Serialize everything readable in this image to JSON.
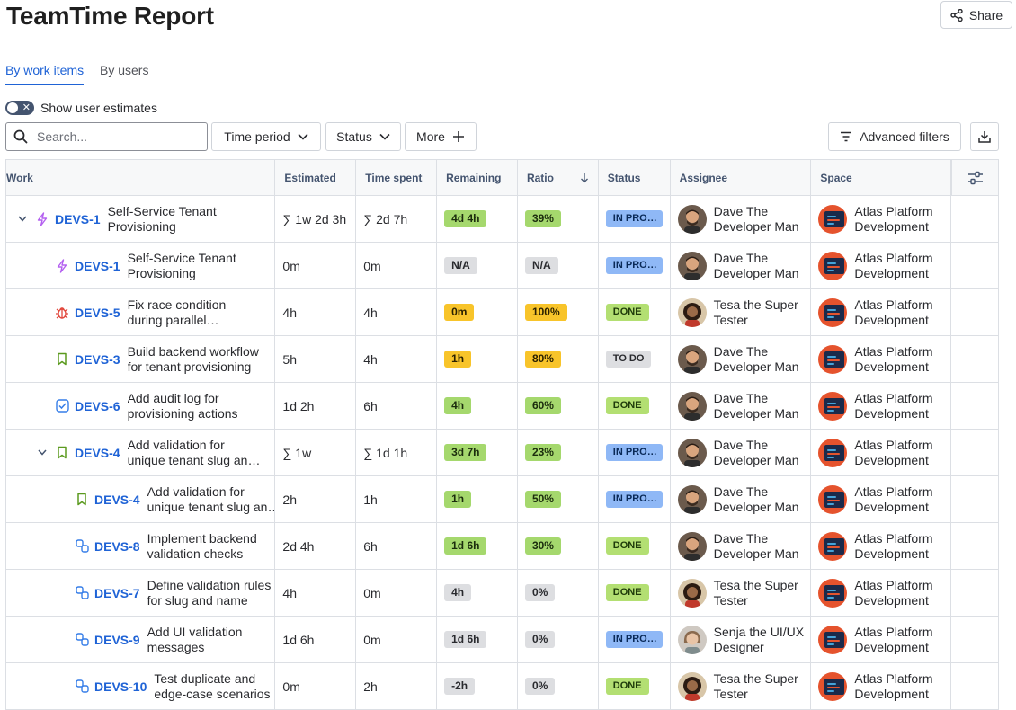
{
  "page": {
    "title": "TeamTime Report",
    "share_label": "Share"
  },
  "tabs": [
    {
      "label": "By work items",
      "active": true
    },
    {
      "label": "By users",
      "active": false
    }
  ],
  "toggle": {
    "label": "Show user estimates",
    "on": false
  },
  "toolbar": {
    "search_placeholder": "Search...",
    "time_period": "Time period",
    "status": "Status",
    "more": "More",
    "advanced_filters": "Advanced filters"
  },
  "table": {
    "columns": [
      "Work",
      "Estimated",
      "Time spent",
      "Remaining",
      "Ratio",
      "Status",
      "Assignee",
      "Space"
    ],
    "rows": [
      {
        "level": 0,
        "expand": true,
        "type": "epic-icon",
        "key": "DEVS-1",
        "summary": "Self-Service Tenant Provisioning",
        "estimated": "∑ 1w 2d 3h",
        "spent": "∑ 2d 7h",
        "remaining": "4d 4h",
        "remaining_color": "green",
        "ratio": "39%",
        "ratio_color": "green",
        "status": "IN PROGRESS",
        "status_kind": "inprog",
        "assignee": "Dave The Developer Man",
        "avatar": "dave",
        "space": "Atlas Platform Development"
      },
      {
        "level": 1,
        "expand": false,
        "type": "epic-icon",
        "key": "DEVS-1",
        "summary": "Self-Service Tenant Provisioning",
        "estimated": "0m",
        "spent": "0m",
        "remaining": "N/A",
        "remaining_color": "grey",
        "ratio": "N/A",
        "ratio_color": "grey",
        "status": "IN PROGRESS",
        "status_kind": "inprog",
        "assignee": "Dave The Developer Man",
        "avatar": "dave",
        "space": "Atlas Platform Development"
      },
      {
        "level": 1,
        "expand": false,
        "type": "bug-icon",
        "key": "DEVS-5",
        "summary": "Fix race condition during parallel provisioning",
        "estimated": "4h",
        "spent": "4h",
        "remaining": "0m",
        "remaining_color": "yellow",
        "ratio": "100%",
        "ratio_color": "yellow",
        "status": "DONE",
        "status_kind": "done",
        "assignee": "Tesa the Super Tester",
        "avatar": "tesa",
        "space": "Atlas Platform Development"
      },
      {
        "level": 1,
        "expand": false,
        "type": "story-icon",
        "key": "DEVS-3",
        "summary": "Build backend workflow for tenant provisioning",
        "estimated": "5h",
        "spent": "4h",
        "remaining": "1h",
        "remaining_color": "yellow",
        "ratio": "80%",
        "ratio_color": "yellow",
        "status": "TO DO",
        "status_kind": "todo",
        "assignee": "Dave The Developer Man",
        "avatar": "dave",
        "space": "Atlas Platform Development"
      },
      {
        "level": 1,
        "expand": false,
        "type": "task-icon",
        "key": "DEVS-6",
        "summary": "Add audit log for provisioning actions",
        "estimated": "1d 2h",
        "spent": "6h",
        "remaining": "4h",
        "remaining_color": "green",
        "ratio": "60%",
        "ratio_color": "green",
        "status": "DONE",
        "status_kind": "done",
        "assignee": "Dave The Developer Man",
        "avatar": "dave",
        "space": "Atlas Platform Development"
      },
      {
        "level": 1,
        "expand": true,
        "type": "story-icon",
        "key": "DEVS-4",
        "summary": "Add validation for unique tenant slug and name",
        "estimated": "∑ 1w",
        "spent": "∑ 1d 1h",
        "remaining": "3d 7h",
        "remaining_color": "green",
        "ratio": "23%",
        "ratio_color": "green",
        "status": "IN PROGRESS",
        "status_kind": "inprog",
        "assignee": "Dave The Developer Man",
        "avatar": "dave",
        "space": "Atlas Platform Development"
      },
      {
        "level": 2,
        "expand": false,
        "type": "story-icon",
        "key": "DEVS-4",
        "summary": "Add validation for unique tenant slug and name",
        "estimated": "2h",
        "spent": "1h",
        "remaining": "1h",
        "remaining_color": "green",
        "ratio": "50%",
        "ratio_color": "green",
        "status": "IN PROGRESS",
        "status_kind": "inprog",
        "assignee": "Dave The Developer Man",
        "avatar": "dave",
        "space": "Atlas Platform Development"
      },
      {
        "level": 2,
        "expand": false,
        "type": "subtask-icon",
        "key": "DEVS-8",
        "summary": "Implement backend validation checks",
        "estimated": "2d 4h",
        "spent": "6h",
        "remaining": "1d 6h",
        "remaining_color": "green",
        "ratio": "30%",
        "ratio_color": "green",
        "status": "DONE",
        "status_kind": "done",
        "assignee": "Dave The Developer Man",
        "avatar": "dave",
        "space": "Atlas Platform Development"
      },
      {
        "level": 2,
        "expand": false,
        "type": "subtask-icon",
        "key": "DEVS-7",
        "summary": "Define validation rules for slug and name",
        "estimated": "4h",
        "spent": "0m",
        "remaining": "4h",
        "remaining_color": "grey",
        "ratio": "0%",
        "ratio_color": "grey",
        "status": "DONE",
        "status_kind": "done",
        "assignee": "Tesa the Super Tester",
        "avatar": "tesa",
        "space": "Atlas Platform Development"
      },
      {
        "level": 2,
        "expand": false,
        "type": "subtask-icon",
        "key": "DEVS-9",
        "summary": "Add UI validation messages",
        "estimated": "1d 6h",
        "spent": "0m",
        "remaining": "1d 6h",
        "remaining_color": "grey",
        "ratio": "0%",
        "ratio_color": "grey",
        "status": "IN PROGRESS",
        "status_kind": "inprog",
        "assignee": "Senja the UI/UX Designer",
        "avatar": "senja",
        "space": "Atlas Platform Development"
      },
      {
        "level": 2,
        "expand": false,
        "type": "subtask-icon",
        "key": "DEVS-10",
        "summary": "Test duplicate and edge-case scenarios",
        "estimated": "0m",
        "spent": "2h",
        "remaining": "-2h",
        "remaining_color": "grey",
        "ratio": "0%",
        "ratio_color": "grey",
        "status": "DONE",
        "status_kind": "done",
        "assignee": "Tesa the Super Tester",
        "avatar": "tesa",
        "space": "Atlas Platform Development"
      }
    ]
  },
  "colors": {
    "accent": "#1f63d6",
    "space_avatar": "#e5532d"
  }
}
